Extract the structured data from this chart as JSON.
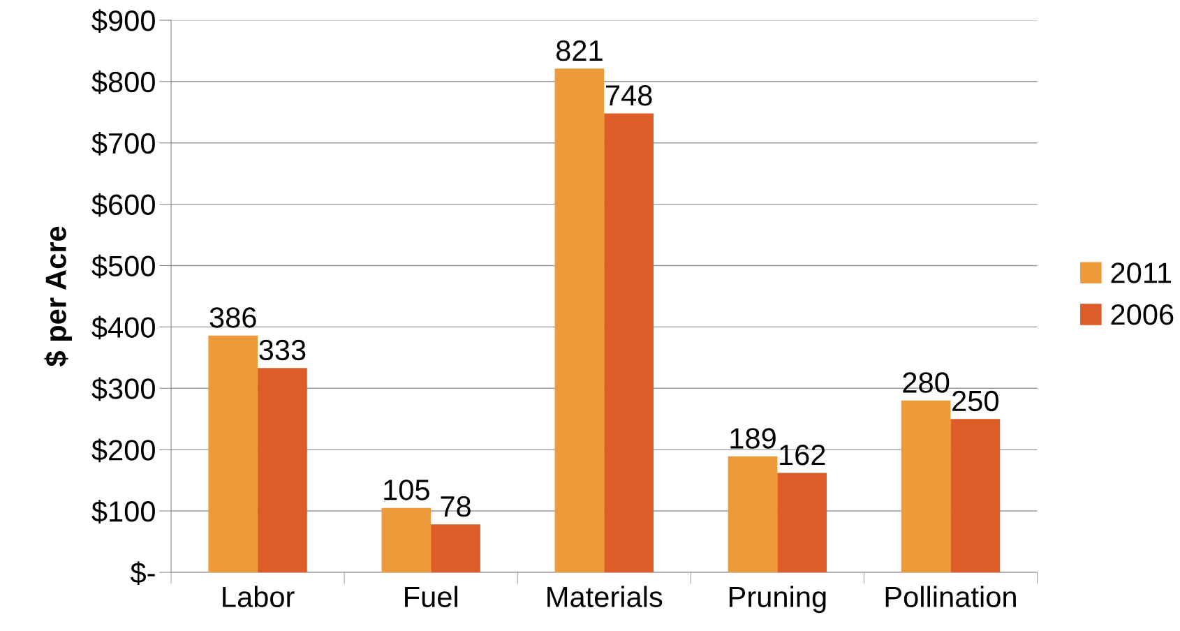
{
  "chart_data": {
    "type": "bar",
    "ylabel": "$ per Acre",
    "categories": [
      "Labor",
      "Fuel",
      "Materials",
      "Pruning",
      "Pollination"
    ],
    "series": [
      {
        "name": "2011",
        "color": "#ed9a3a",
        "values": [
          386,
          105,
          821,
          189,
          280
        ]
      },
      {
        "name": "2006",
        "color": "#dd5c27",
        "values": [
          333,
          78,
          748,
          162,
          250
        ]
      }
    ],
    "ylim": [
      0,
      900
    ],
    "yticks": [
      {
        "value": 0,
        "label": "$-"
      },
      {
        "value": 100,
        "label": "$100"
      },
      {
        "value": 200,
        "label": "$200"
      },
      {
        "value": 300,
        "label": "$300"
      },
      {
        "value": 400,
        "label": "$400"
      },
      {
        "value": 500,
        "label": "$500"
      },
      {
        "value": 600,
        "label": "$600"
      },
      {
        "value": 700,
        "label": "$700"
      },
      {
        "value": 800,
        "label": "$800"
      },
      {
        "value": 900,
        "label": "$900"
      }
    ],
    "grid": "y",
    "legend": "right",
    "data_labels": true
  }
}
